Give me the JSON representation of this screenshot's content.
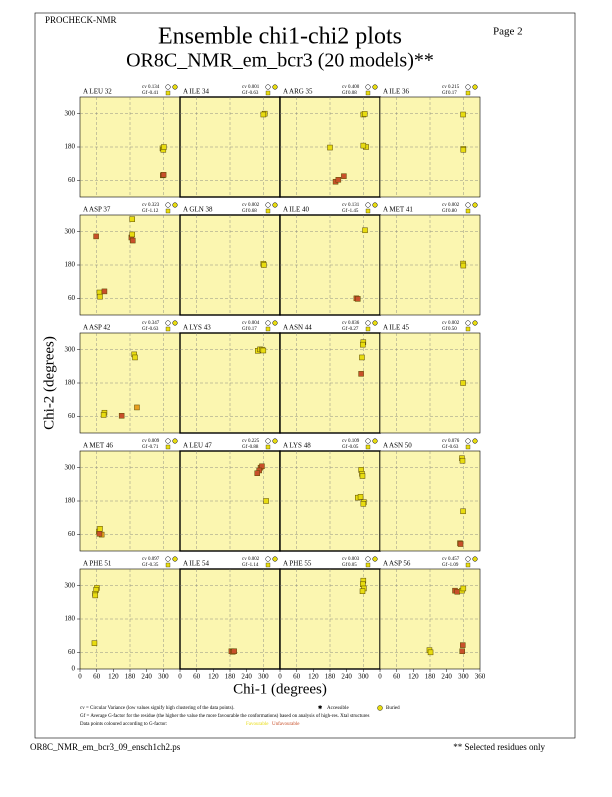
{
  "header": {
    "program": "PROCHECK-NMR",
    "page": "Page  2",
    "title": "Ensemble chi1-chi2 plots",
    "subtitle": "OR8C_NMR_em_bcr3 (20 models)**"
  },
  "chart_data": {
    "type": "scatter-grid",
    "xlabel": "Chi-1 (degrees)",
    "ylabel": "Chi-2 (degrees)",
    "xlim": [
      0,
      360
    ],
    "ylim": [
      0,
      360
    ],
    "xticks": [
      0,
      60,
      120,
      180,
      240,
      300,
      360
    ],
    "yticks": [
      0,
      60,
      180,
      300
    ],
    "grid": true,
    "columns": 4,
    "cv_label": "cv",
    "gf_label": "Gf",
    "panels": [
      {
        "residue": "A LEU 32",
        "cv": "0.134",
        "gf": "-0.41",
        "x": [
          297,
          300,
          302,
          298,
          301
        ],
        "y": [
          175,
          170,
          180,
          78,
          80
        ],
        "colors": [
          "#e8dc10",
          "#e8dc10",
          "#e8dc10",
          "#c8502a",
          "#c8502a"
        ]
      },
      {
        "residue": "A ILE 34",
        "cv": "0.001",
        "gf": "-0.63",
        "x": [
          305,
          300
        ],
        "y": [
          300,
          297
        ],
        "colors": [
          "#e8dc10",
          "#e8dc10"
        ]
      },
      {
        "residue": "A ARG 35",
        "cv": "0.400",
        "gf": "0.08",
        "x": [
          180,
          300,
          305,
          310,
          300,
          200,
          210,
          230
        ],
        "y": [
          178,
          297,
          299,
          180,
          185,
          55,
          62,
          75
        ],
        "colors": [
          "#e8dc10",
          "#e8dc10",
          "#e8dc10",
          "#e8dc10",
          "#e8dc10",
          "#c8502a",
          "#c8502a",
          "#c8502a"
        ]
      },
      {
        "residue": "A ILE 36",
        "cv": "0.215",
        "gf": "0.17",
        "x": [
          299,
          300,
          300
        ],
        "y": [
          297,
          173,
          170
        ],
        "colors": [
          "#e8dc10",
          "#e8dc10",
          "#e8dc10"
        ]
      },
      {
        "residue": "A ASP 37",
        "cv": "0.323",
        "gf": "-1.12",
        "x": [
          58,
          185,
          190,
          188,
          188,
          70,
          72,
          88
        ],
        "y": [
          283,
          279,
          268,
          290,
          345,
          81,
          66,
          85
        ],
        "colors": [
          "#c8502a",
          "#c8502a",
          "#c8502a",
          "#e8dc10",
          "#e8dc10",
          "#e8dc10",
          "#e8dc10",
          "#c8502a"
        ]
      },
      {
        "residue": "A GLN 38",
        "cv": "0.002",
        "gf": "0.68",
        "x": [
          300,
          302
        ],
        "y": [
          184,
          180
        ],
        "colors": [
          "#e8dc10",
          "#e8dc10"
        ]
      },
      {
        "residue": "A ILE 40",
        "cv": "0.131",
        "gf": "-1.45",
        "x": [
          306,
          275,
          280
        ],
        "y": [
          305,
          60,
          58
        ],
        "colors": [
          "#e8dc10",
          "#c8502a",
          "#c8502a"
        ]
      },
      {
        "residue": "A MET 41",
        "cv": "0.002",
        "gf": "0.80",
        "x": [
          299,
          300
        ],
        "y": [
          185,
          178
        ],
        "colors": [
          "#e8dc10",
          "#e8dc10"
        ]
      },
      {
        "residue": "A ASP 42",
        "cv": "0.347",
        "gf": "-0.63",
        "x": [
          195,
          198,
          88,
          85,
          205,
          150
        ],
        "y": [
          283,
          272,
          73,
          65,
          92,
          62
        ],
        "colors": [
          "#e8dc10",
          "#e8dc10",
          "#e8dc10",
          "#e8dc10",
          "#e8a020",
          "#c8502a"
        ]
      },
      {
        "residue": "A LYS 43",
        "cv": "0.004",
        "gf": "0.17",
        "x": [
          280,
          288,
          295,
          300
        ],
        "y": [
          296,
          301,
          300,
          297
        ],
        "colors": [
          "#e8dc10",
          "#e8dc10",
          "#e8dc10",
          "#e8dc10"
        ]
      },
      {
        "residue": "A ASN 44",
        "cv": "0.036",
        "gf": "-0.27",
        "x": [
          300,
          298,
          295,
          292
        ],
        "y": [
          327,
          318,
          272,
          213
        ],
        "colors": [
          "#e8dc10",
          "#e8dc10",
          "#e8dc10",
          "#c8502a"
        ]
      },
      {
        "residue": "A ILE 45",
        "cv": "0.002",
        "gf": "0.50",
        "x": [
          299
        ],
        "y": [
          180
        ],
        "colors": [
          "#e8dc10"
        ]
      },
      {
        "residue": "A MET 46",
        "cv": "0.009",
        "gf": "-0.71",
        "x": [
          68,
          72,
          78,
          70
        ],
        "y": [
          70,
          80,
          59,
          62
        ],
        "colors": [
          "#e8dc10",
          "#e8dc10",
          "#e8a020",
          "#c8502a"
        ]
      },
      {
        "residue": "A LEU 47",
        "cv": "0.225",
        "gf": "-0.88",
        "x": [
          290,
          295,
          285,
          278,
          310
        ],
        "y": [
          300,
          305,
          290,
          280,
          180
        ],
        "colors": [
          "#c8502a",
          "#c8502a",
          "#c8502a",
          "#c8502a",
          "#e8dc10"
        ]
      },
      {
        "residue": "A LYS 48",
        "cv": "0.109",
        "gf": "-0.05",
        "x": [
          292,
          295,
          297,
          280,
          290,
          302,
          300
        ],
        "y": [
          292,
          278,
          270,
          192,
          195,
          176,
          170
        ],
        "colors": [
          "#e8dc10",
          "#e8dc10",
          "#e8dc10",
          "#e8dc10",
          "#e8dc10",
          "#e8dc10",
          "#e8dc10"
        ]
      },
      {
        "residue": "A ASN 50",
        "cv": "0.076",
        "gf": "-0.63",
        "x": [
          295,
          297,
          299,
          288,
          290
        ],
        "y": [
          334,
          325,
          143,
          28,
          25
        ],
        "colors": [
          "#e8dc10",
          "#e8dc10",
          "#e8dc10",
          "#c8502a",
          "#c8502a"
        ]
      },
      {
        "residue": "A PHE 51",
        "cv": "0.097",
        "gf": "-0.35",
        "x": [
          61,
          58,
          54,
          55,
          52
        ],
        "y": [
          292,
          285,
          271,
          265,
          93
        ],
        "colors": [
          "#e8dc10",
          "#e8dc10",
          "#e8dc10",
          "#e8dc10",
          "#e8dc10"
        ]
      },
      {
        "residue": "A ILE 54",
        "cv": "0.002",
        "gf": "-1.14",
        "x": [
          185,
          190,
          195
        ],
        "y": [
          64,
          62,
          64
        ],
        "colors": [
          "#c8502a",
          "#c8502a",
          "#c8502a"
        ]
      },
      {
        "residue": "A PHE 55",
        "cv": "0.003",
        "gf": "0.05",
        "x": [
          300,
          298,
          302,
          297
        ],
        "y": [
          318,
          305,
          290,
          280
        ],
        "colors": [
          "#e8dc10",
          "#e8dc10",
          "#e8dc10",
          "#e8dc10"
        ]
      },
      {
        "residue": "A ASP 56",
        "cv": "0.457",
        "gf": "-1.09",
        "x": [
          178,
          182,
          270,
          278,
          295,
          300,
          298,
          296
        ],
        "y": [
          68,
          60,
          282,
          278,
          282,
          290,
          86,
          64
        ],
        "colors": [
          "#e8dc10",
          "#e8dc10",
          "#c8502a",
          "#c8502a",
          "#e8dc10",
          "#e8dc10",
          "#c8502a",
          "#c8502a"
        ]
      }
    ]
  },
  "footer": {
    "cv_note": "cv = Circular Variance (low values signify high clustering of the data points).",
    "accessible": "Accessible",
    "buried": "Buried",
    "gf_note": "Gf = Average G-factor for the residue (the higher the value the more favourable the conformations) based on analysis of high-res. Xtal structures",
    "color_note": "Data points coloured according to G-factor:",
    "favourable": "Favourable",
    "unfavourable": "Unfavourable",
    "filename": "OR8C_NMR_em_bcr3_09_ensch1ch2.ps",
    "selected": "** Selected residues only"
  }
}
